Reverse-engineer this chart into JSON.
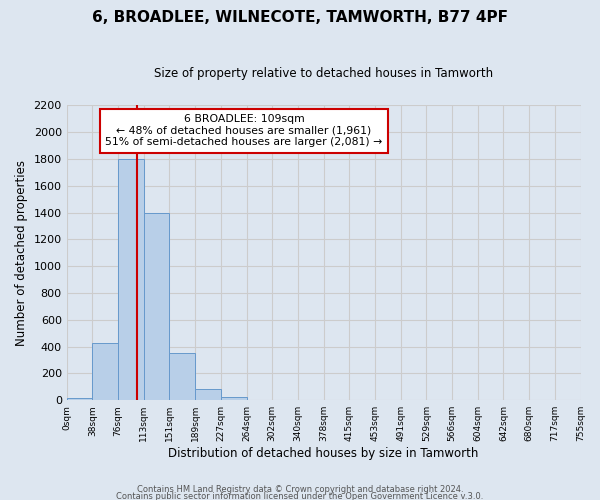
{
  "title": "6, BROADLEE, WILNECOTE, TAMWORTH, B77 4PF",
  "subtitle": "Size of property relative to detached houses in Tamworth",
  "xlabel": "Distribution of detached houses by size in Tamworth",
  "ylabel": "Number of detached properties",
  "bin_labels": [
    "0sqm",
    "38sqm",
    "76sqm",
    "113sqm",
    "151sqm",
    "189sqm",
    "227sqm",
    "264sqm",
    "302sqm",
    "340sqm",
    "378sqm",
    "415sqm",
    "453sqm",
    "491sqm",
    "529sqm",
    "566sqm",
    "604sqm",
    "642sqm",
    "680sqm",
    "717sqm",
    "755sqm"
  ],
  "bar_heights": [
    20,
    430,
    1800,
    1400,
    350,
    80,
    25,
    5,
    0,
    0,
    0,
    0,
    0,
    0,
    0,
    0,
    0,
    0,
    0,
    0
  ],
  "bar_color": "#b8cfe8",
  "bar_edge_color": "#6699cc",
  "vline_bin": 2.72,
  "vline_color": "#cc0000",
  "ylim": [
    0,
    2200
  ],
  "yticks": [
    0,
    200,
    400,
    600,
    800,
    1000,
    1200,
    1400,
    1600,
    1800,
    2000,
    2200
  ],
  "annotation_title": "6 BROADLEE: 109sqm",
  "annotation_line1": "← 48% of detached houses are smaller (1,961)",
  "annotation_line2": "51% of semi-detached houses are larger (2,081) →",
  "annotation_box_color": "#ffffff",
  "annotation_box_edge": "#cc0000",
  "grid_color": "#cccccc",
  "background_color": "#dde6f0",
  "footer1": "Contains HM Land Registry data © Crown copyright and database right 2024.",
  "footer2": "Contains public sector information licensed under the Open Government Licence v.3.0."
}
